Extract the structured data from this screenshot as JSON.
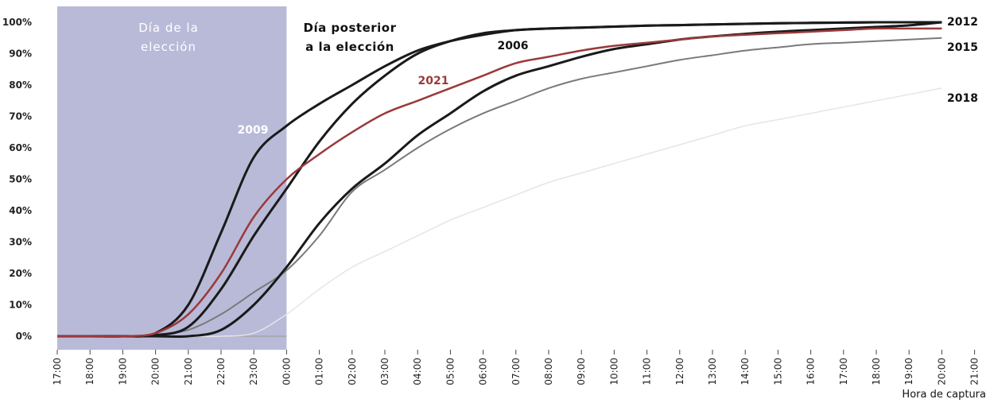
{
  "chart_data": {
    "type": "line",
    "xlabel": "Hora de captura",
    "x_ticks": [
      "17:00",
      "18:00",
      "19:00",
      "20:00",
      "21:00",
      "22:00",
      "23:00",
      "00:00",
      "01:00",
      "02:00",
      "03:00",
      "04:00",
      "05:00",
      "06:00",
      "07:00",
      "08:00",
      "09:00",
      "10:00",
      "11:00",
      "12:00",
      "13:00",
      "14:00",
      "15:00",
      "16:00",
      "17:00",
      "18:00",
      "19:00",
      "20:00",
      "21:00"
    ],
    "y_ticks": [
      "0%",
      "10%",
      "20%",
      "30%",
      "40%",
      "50%",
      "60%",
      "70%",
      "80%",
      "90%",
      "100%"
    ],
    "ylim": [
      0,
      100
    ],
    "shaded_region": {
      "from": "17:00",
      "to": "00:00",
      "label_lines": [
        "Día de la",
        "elección"
      ],
      "color": "#b9bad8"
    },
    "post_label_lines": [
      "Día posterior",
      "a la elección"
    ],
    "series": [
      {
        "name": "2006",
        "color": "#1a1a1a",
        "x": [
          0,
          1,
          2,
          3,
          4,
          5,
          6,
          7,
          8,
          9,
          10,
          11,
          12,
          13,
          14,
          15,
          16,
          17,
          18,
          19,
          20,
          21,
          22,
          23,
          24,
          25,
          26,
          27
        ],
        "values": [
          0,
          0,
          0,
          0.3,
          3,
          15,
          32,
          47,
          62,
          74,
          83,
          90,
          94,
          96.5,
          97.5,
          98,
          98.3,
          98.6,
          98.9,
          99.1,
          99.3,
          99.5,
          99.7,
          99.8,
          99.9,
          100,
          100,
          100
        ]
      },
      {
        "name": "2009",
        "color": "#1a1a1a",
        "x": [
          0,
          1,
          2,
          3,
          4,
          5,
          6,
          7,
          8,
          9,
          10,
          11,
          12,
          13,
          14,
          15,
          16,
          17,
          18,
          19,
          20,
          21,
          22,
          23,
          24,
          25,
          26,
          27
        ],
        "values": [
          0,
          0,
          0,
          1,
          10,
          33,
          57,
          67,
          74,
          80,
          86,
          91,
          94,
          96,
          97.5,
          98,
          98.3,
          98.6,
          98.9,
          99.1,
          99.3,
          99.5,
          99.7,
          99.8,
          99.9,
          100,
          100,
          100
        ]
      },
      {
        "name": "2021",
        "color": "#9a3a3a",
        "x": [
          0,
          1,
          2,
          3,
          4,
          5,
          6,
          7,
          8,
          9,
          10,
          11,
          12,
          13,
          14,
          15,
          16,
          17,
          18,
          19,
          20,
          21,
          22,
          23,
          24,
          25,
          26,
          27
        ],
        "values": [
          0,
          0,
          0,
          1,
          7,
          20,
          38,
          50,
          58,
          65,
          71,
          75,
          79,
          83,
          87,
          89,
          91,
          92.5,
          93.5,
          94.5,
          95.5,
          96,
          96.5,
          97,
          97.5,
          98,
          98,
          98
        ]
      },
      {
        "name": "2012",
        "color": "#1a1a1a",
        "x": [
          0,
          1,
          2,
          3,
          4,
          5,
          6,
          7,
          8,
          9,
          10,
          11,
          12,
          13,
          14,
          15,
          16,
          17,
          18,
          19,
          20,
          21,
          22,
          23,
          24,
          25,
          26,
          27
        ],
        "values": [
          0,
          0,
          0,
          0,
          0,
          2,
          10,
          22,
          36,
          47,
          55,
          64,
          71,
          78,
          83,
          86,
          89,
          91.5,
          93,
          94.5,
          95.5,
          96.3,
          97,
          97.5,
          98,
          98.5,
          99,
          100
        ]
      },
      {
        "name": "2015",
        "color": "#7a7a7a",
        "x": [
          0,
          1,
          2,
          3,
          4,
          5,
          6,
          7,
          8,
          9,
          10,
          11,
          12,
          13,
          14,
          15,
          16,
          17,
          18,
          19,
          20,
          21,
          22,
          23,
          24,
          25,
          26,
          27
        ],
        "values": [
          0,
          0,
          0,
          0.5,
          2,
          7,
          14,
          21,
          32,
          46,
          53,
          60,
          66,
          71,
          75,
          79,
          82,
          84,
          86,
          88,
          89.5,
          91,
          92,
          93,
          93.5,
          94,
          94.5,
          95
        ]
      },
      {
        "name": "2018",
        "color": "#e4e5ec",
        "x": [
          0,
          1,
          2,
          3,
          4,
          5,
          6,
          7,
          8,
          9,
          10,
          11,
          12,
          13,
          14,
          15,
          16,
          17,
          18,
          19,
          20,
          21,
          22,
          23,
          24,
          25,
          26,
          27
        ],
        "values": [
          0,
          0,
          0,
          0,
          0,
          0,
          1,
          7,
          15,
          22,
          27,
          32,
          37,
          41,
          45,
          49,
          52,
          55,
          58,
          61,
          64,
          67,
          69,
          71,
          73,
          75,
          77,
          79
        ]
      }
    ]
  }
}
